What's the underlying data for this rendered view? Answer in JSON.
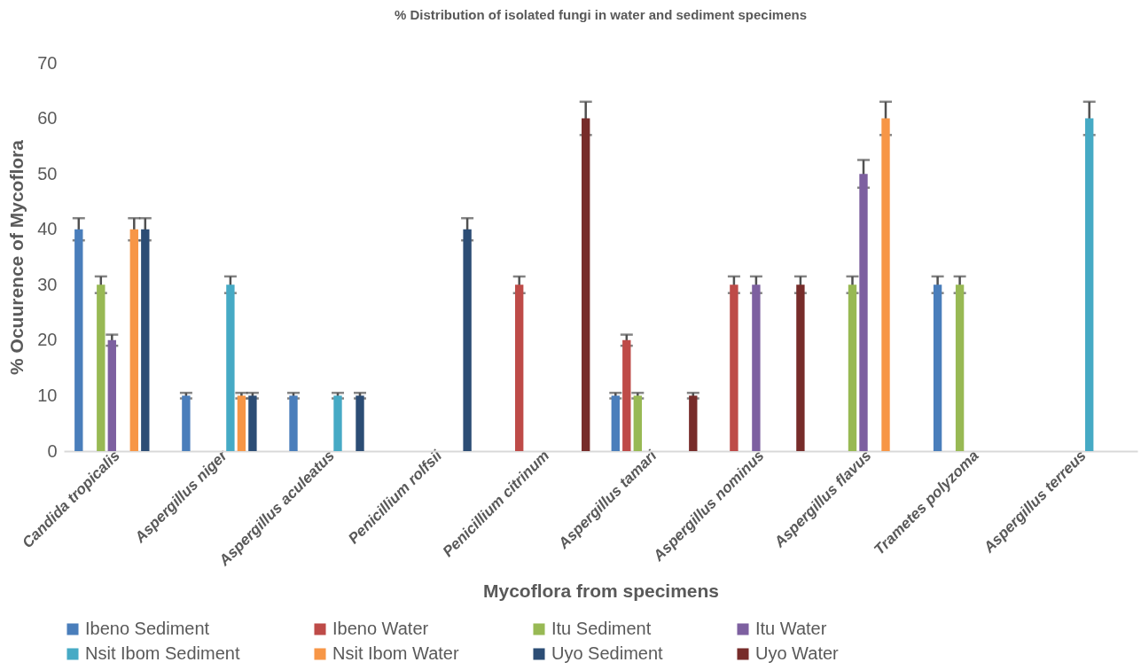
{
  "chart_data": {
    "type": "bar",
    "title": "% Distribution of isolated fungi in water and sediment specimens",
    "xlabel": "Mycoflora from specimens",
    "ylabel": "% Ocuurence of Mycoflora",
    "categories": [
      "Candida tropicalis",
      "Aspergillus niger",
      "Aspergillus aculeatus",
      "Penicillium rolfsii",
      "Penicillium citrinum",
      "Aspergillus tamari",
      "Aspergillus nominus",
      "Aspergillus flavus",
      "Trametes polyzoma",
      "Aspergillus terreus"
    ],
    "series": [
      {
        "name": "Ibeno Sediment",
        "color": "#4a7ebb",
        "values": [
          40,
          10,
          10,
          0,
          0,
          10,
          0,
          0,
          30,
          0
        ],
        "errors": [
          2,
          0.5,
          0.5,
          null,
          null,
          0.5,
          null,
          null,
          1.5,
          null
        ]
      },
      {
        "name": "Ibeno Water",
        "color": "#be4b48",
        "values": [
          0,
          0,
          0,
          0,
          30,
          20,
          30,
          0,
          0,
          0
        ],
        "errors": [
          null,
          null,
          null,
          null,
          1.5,
          1,
          1.5,
          null,
          null,
          null
        ]
      },
      {
        "name": "Itu Sediment",
        "color": "#98b954",
        "values": [
          30,
          0,
          0,
          0,
          0,
          10,
          0,
          30,
          30,
          0
        ],
        "errors": [
          1.5,
          null,
          null,
          null,
          null,
          0.5,
          null,
          1.5,
          1.5,
          null
        ]
      },
      {
        "name": "Itu Water",
        "color": "#7d60a0",
        "values": [
          20,
          0,
          0,
          0,
          0,
          0,
          30,
          50,
          0,
          0
        ],
        "errors": [
          1,
          null,
          null,
          null,
          null,
          null,
          1.5,
          2.5,
          null,
          null
        ]
      },
      {
        "name": "Nsit Ibom Sediment",
        "color": "#46aac5",
        "values": [
          0,
          30,
          10,
          0,
          0,
          0,
          0,
          0,
          0,
          60
        ],
        "errors": [
          null,
          1.5,
          0.5,
          null,
          null,
          null,
          null,
          null,
          null,
          3
        ]
      },
      {
        "name": "Nsit Ibom Water",
        "color": "#f79646",
        "values": [
          40,
          10,
          0,
          0,
          0,
          0,
          0,
          60,
          0,
          0
        ],
        "errors": [
          2,
          0.5,
          null,
          null,
          null,
          null,
          null,
          3,
          null,
          null
        ]
      },
      {
        "name": "Uyo Sediment",
        "color": "#2c4d75",
        "values": [
          40,
          10,
          10,
          40,
          0,
          0,
          0,
          0,
          0,
          0
        ],
        "errors": [
          2,
          0.5,
          0.5,
          2,
          null,
          null,
          null,
          null,
          null,
          null
        ]
      },
      {
        "name": "Uyo Water",
        "color": "#772c2a",
        "values": [
          0,
          0,
          0,
          0,
          60,
          10,
          30,
          0,
          0,
          0
        ],
        "errors": [
          null,
          null,
          null,
          null,
          3,
          0.5,
          1.5,
          null,
          null,
          null
        ]
      }
    ],
    "ylim": [
      0,
      70
    ],
    "yticks": [
      0,
      10,
      20,
      30,
      40,
      50,
      60,
      70
    ],
    "grid": false,
    "legend": "bottom"
  }
}
